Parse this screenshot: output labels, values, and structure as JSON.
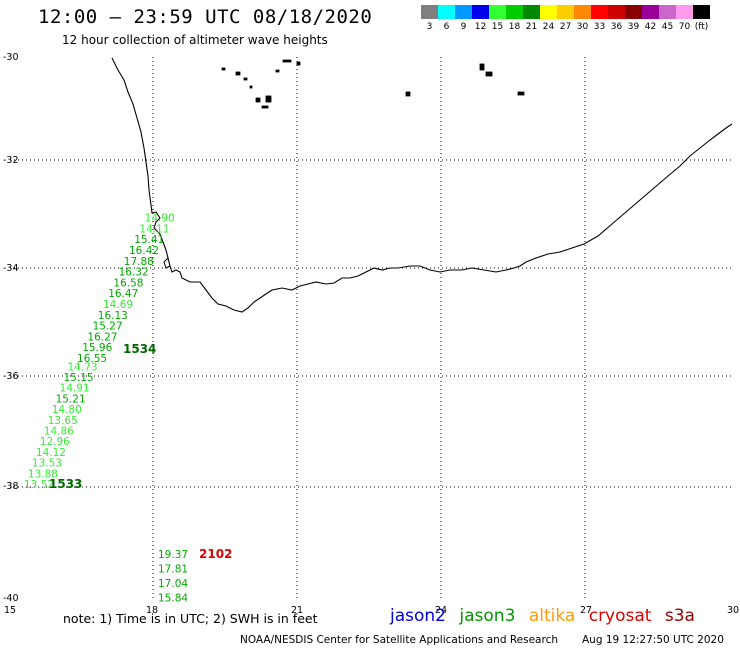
{
  "header": {
    "title": "12:00 – 23:59 UTC 08/18/2020",
    "subtitle": "12 hour collection of altimeter wave heights"
  },
  "legend": {
    "unit": "(ft)",
    "bins": [
      {
        "label": "3",
        "color": "#7f7f7f"
      },
      {
        "label": "6",
        "color": "#00ffff"
      },
      {
        "label": "9",
        "color": "#0099ff"
      },
      {
        "label": "12",
        "color": "#0000ee"
      },
      {
        "label": "15",
        "color": "#33ff33"
      },
      {
        "label": "18",
        "color": "#00cc00"
      },
      {
        "label": "21",
        "color": "#008800"
      },
      {
        "label": "24",
        "color": "#ffff00"
      },
      {
        "label": "27",
        "color": "#ffcc00"
      },
      {
        "label": "30",
        "color": "#ff8800"
      },
      {
        "label": "33",
        "color": "#ff0000"
      },
      {
        "label": "36",
        "color": "#cc0000"
      },
      {
        "label": "39",
        "color": "#880000"
      },
      {
        "label": "42",
        "color": "#990099"
      },
      {
        "label": "45",
        "color": "#cc66cc"
      },
      {
        "label": "70",
        "color": "#ff99ee"
      },
      {
        "label": "",
        "color": "#000000"
      }
    ]
  },
  "axes": {
    "lat_labels": [
      "-30",
      "-32",
      "-34",
      "-36",
      "-38",
      "-40"
    ],
    "lon_labels": [
      "15",
      "18",
      "21",
      "24",
      "27",
      "30"
    ]
  },
  "track_west": {
    "time_label": "1533",
    "points": [
      {
        "swh": "13.52",
        "color": "#33ee33"
      },
      {
        "swh": "13.88",
        "color": "#33ee33"
      },
      {
        "swh": "13.53",
        "color": "#33ee33"
      },
      {
        "swh": "14.12",
        "color": "#33ee33"
      },
      {
        "swh": "12.96",
        "color": "#33ee33"
      },
      {
        "swh": "14.86",
        "color": "#33ee33"
      },
      {
        "swh": "13.65",
        "color": "#33ee33"
      },
      {
        "swh": "14.80",
        "color": "#33ee33"
      },
      {
        "swh": "15.21",
        "color": "#00aa00"
      },
      {
        "swh": "14.91",
        "color": "#33ee33"
      },
      {
        "swh": "15.15",
        "color": "#00aa00"
      },
      {
        "swh": "14.73",
        "color": "#33ee33"
      }
    ]
  },
  "track_east": {
    "time_label": "1534",
    "points": [
      {
        "swh": "16.55",
        "color": "#00aa00"
      },
      {
        "swh": "15.96",
        "color": "#00aa00"
      },
      {
        "swh": "16.27",
        "color": "#00aa00"
      },
      {
        "swh": "15.27",
        "color": "#00aa00"
      },
      {
        "swh": "16.13",
        "color": "#00aa00"
      },
      {
        "swh": "14.69",
        "color": "#33ee33"
      },
      {
        "swh": "16.47",
        "color": "#00aa00"
      },
      {
        "swh": "16.58",
        "color": "#00aa00"
      },
      {
        "swh": "16.32",
        "color": "#00aa00"
      },
      {
        "swh": "17.88",
        "color": "#00aa00"
      },
      {
        "swh": "16.42",
        "color": "#00aa00"
      },
      {
        "swh": "15.41",
        "color": "#00aa00"
      },
      {
        "swh": "14.11",
        "color": "#33ee33"
      },
      {
        "swh": "14.90",
        "color": "#33ee33"
      }
    ]
  },
  "track_south": {
    "time_label": "2102",
    "time_color": "#dd0000",
    "points": [
      {
        "swh": "19.37",
        "color": "#00aa00"
      },
      {
        "swh": "17.81",
        "color": "#00aa00"
      },
      {
        "swh": "17.04",
        "color": "#00aa00"
      },
      {
        "swh": "15.84",
        "color": "#00aa00"
      }
    ]
  },
  "footer": {
    "note": "note: 1) Time is in UTC; 2) SWH is in feet",
    "missions": [
      {
        "name": "jason2",
        "color": "#0000dd"
      },
      {
        "name": "jason3",
        "color": "#009900"
      },
      {
        "name": "altika",
        "color": "#ff9900"
      },
      {
        "name": "cryosat",
        "color": "#dd0000"
      },
      {
        "name": "s3a",
        "color": "#990000"
      }
    ],
    "credit": "NOAA/NESDIS Center for Satellite Applications and Research",
    "timestamp": "Aug 19 12:27:50 UTC 2020"
  }
}
